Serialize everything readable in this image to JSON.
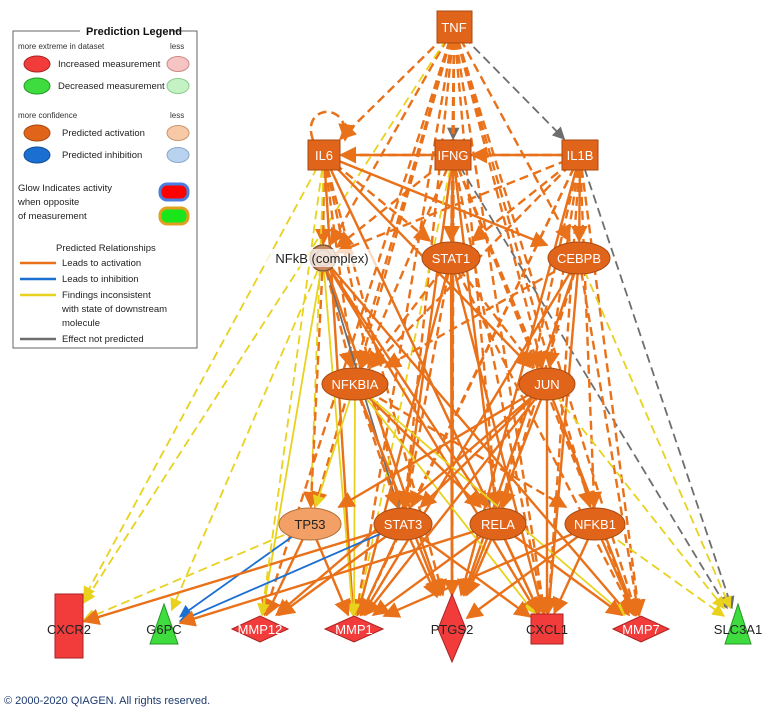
{
  "legend": {
    "title": "Prediction Legend",
    "more_extreme": "more extreme in dataset",
    "less1": "less",
    "increased": "Increased measurement",
    "decreased": "Decreased measurement",
    "more_confidence": "more confidence",
    "less2": "less",
    "pred_activation": "Predicted activation",
    "pred_inhibition": "Predicted inhibition",
    "glow1": "Glow Indicates activity",
    "glow2": "when opposite",
    "glow3": "of measurement",
    "rel_title": "Predicted Relationships",
    "rel_activation": "Leads to activation",
    "rel_inhibition": "Leads to inhibition",
    "rel_inconsistent1": "Findings inconsistent",
    "rel_inconsistent2": "with state of downstream",
    "rel_inconsistent3": "molecule",
    "rel_not_predicted": "Effect not predicted"
  },
  "nodes": {
    "tnf": "TNF",
    "il6": "IL6",
    "ifng": "IFNG",
    "il1b": "IL1B",
    "nfkb": "NFkB (complex)",
    "stat1": "STAT1",
    "cebpb": "CEBPB",
    "nfkbia": "NFKBIA",
    "jun": "JUN",
    "tp53": "TP53",
    "stat3": "STAT3",
    "rela": "RELA",
    "nfkb1": "NFKB1",
    "cxcr2": "CXCR2",
    "g6pc": "G6PC",
    "mmp12": "MMP12",
    "mmp1": "MMP1",
    "ptgs2": "PTGS2",
    "cxcl1": "CXCL1",
    "mmp7": "MMP7",
    "slc3a1": "SLC3A1"
  },
  "colors": {
    "activation": "#e8711a",
    "node_orange": "#e0641a",
    "node_light": "#f2a066",
    "increased": "#f23c3c",
    "decreased": "#3fdc3f",
    "inhibition": "#1a6fd1",
    "inconsistent": "#e8d21e",
    "not_predicted": "#6e6e6e"
  },
  "copyright": "© 2000-2020 QIAGEN. All rights reserved."
}
